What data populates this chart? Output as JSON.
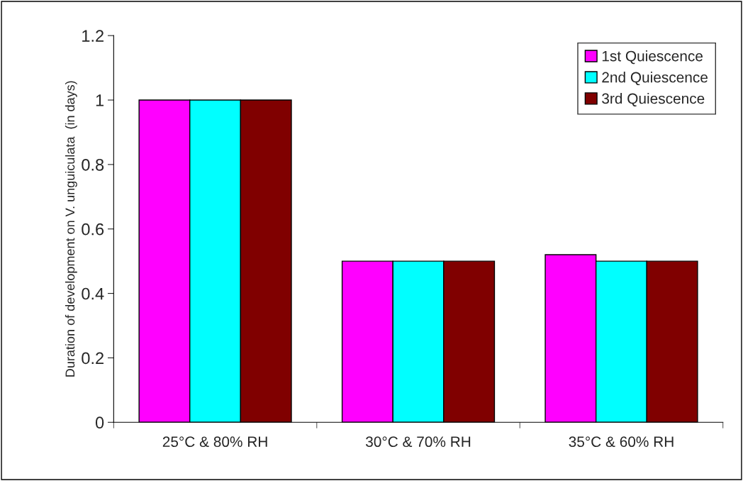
{
  "chart_data": {
    "type": "bar",
    "ylabel": "Duration of development on V. unguiculata  (in days)",
    "categories": [
      "25°C & 80% RH",
      "30°C & 70% RH",
      "35°C & 60% RH"
    ],
    "series": [
      {
        "name": "1st Quiescence",
        "color": "#ff00ff",
        "values": [
          1,
          0.5,
          0.52
        ]
      },
      {
        "name": "2nd Quiescence",
        "color": "#00ffff",
        "values": [
          1,
          0.5,
          0.5
        ]
      },
      {
        "name": "3rd Quiescence",
        "color": "#800000",
        "values": [
          1,
          0.5,
          0.5
        ]
      }
    ],
    "ylim": [
      0,
      1.2
    ],
    "yticks": [
      0,
      0.2,
      0.4,
      0.6,
      0.8,
      1,
      1.2
    ],
    "grid": false,
    "legend": "top right"
  }
}
